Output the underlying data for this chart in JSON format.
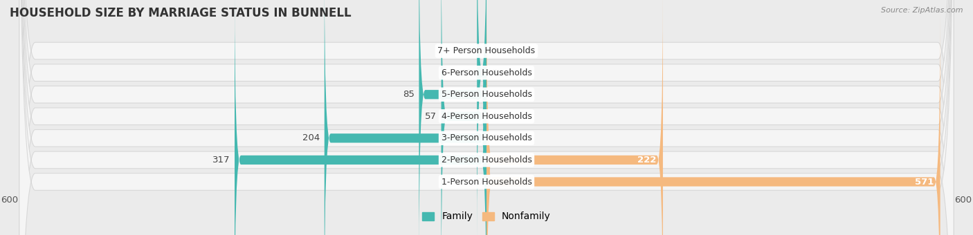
{
  "title": "HOUSEHOLD SIZE BY MARRIAGE STATUS IN BUNNELL",
  "source": "Source: ZipAtlas.com",
  "categories": [
    "7+ Person Households",
    "6-Person Households",
    "5-Person Households",
    "4-Person Households",
    "3-Person Households",
    "2-Person Households",
    "1-Person Households"
  ],
  "family_values": [
    0,
    12,
    85,
    57,
    204,
    317,
    0
  ],
  "nonfamily_values": [
    0,
    0,
    0,
    0,
    0,
    222,
    571
  ],
  "family_color": "#45b8b0",
  "nonfamily_color": "#f5b97f",
  "axis_max": 600,
  "bg_color": "#ebebeb",
  "row_bg_color": "#f5f5f5",
  "title_fontsize": 12,
  "label_fontsize": 9.5,
  "legend_family": "Family",
  "legend_nonfamily": "Nonfamily"
}
